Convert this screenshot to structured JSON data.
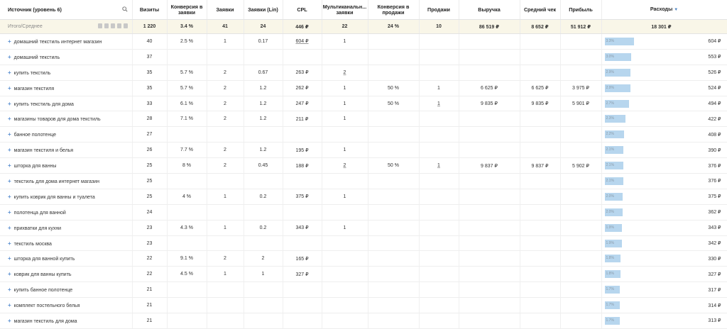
{
  "headers": {
    "source": "Источник (уровень 6)",
    "visits": "Визиты",
    "conv_req": "Конверсия в заявки",
    "requests": "Заявки",
    "requests_lin": "Заявки (Lin)",
    "cpl": "CPL",
    "multichannel": "Мультиканальн... заявки",
    "conv_sales": "Конверсия в продажи",
    "sales": "Продажи",
    "revenue": "Выручка",
    "avg_check": "Средний чек",
    "profit": "Прибыль",
    "spend": "Расходы",
    "sort_arrow": "▼"
  },
  "total": {
    "label": "Итого/Среднее",
    "visits": "1 220",
    "conv_req": "3.4 %",
    "requests": "41",
    "requests_lin": "24",
    "cpl": "446 ₽",
    "multichannel": "22",
    "conv_sales": "24 %",
    "sales": "10",
    "revenue": "86 519 ₽",
    "avg_check": "8 652 ₽",
    "profit": "51 912 ₽",
    "spend": "18 301 ₽"
  },
  "rows": [
    {
      "name": "домашний текстиль интернет магазин",
      "visits": "40",
      "conv_req": "2.5 %",
      "requests": "1",
      "requests_lin": "0.17",
      "cpl": "604 ₽",
      "multichannel": "1",
      "conv_sales": "",
      "sales": "",
      "revenue": "",
      "avg_check": "",
      "profit": "",
      "spend": "604 ₽",
      "spend_pct": "3.3%",
      "spend_share": 0.033
    },
    {
      "name": "домашний текстиль",
      "visits": "37",
      "conv_req": "",
      "requests": "",
      "requests_lin": "",
      "cpl": "",
      "multichannel": "",
      "conv_sales": "",
      "sales": "",
      "revenue": "",
      "avg_check": "",
      "profit": "",
      "spend": "553 ₽",
      "spend_pct": "3.0%",
      "spend_share": 0.03
    },
    {
      "name": "купить текстиль",
      "visits": "35",
      "conv_req": "5.7 %",
      "requests": "2",
      "requests_lin": "0.67",
      "cpl": "263 ₽",
      "multichannel": "2",
      "conv_sales": "",
      "sales": "",
      "revenue": "",
      "avg_check": "",
      "profit": "",
      "spend": "526 ₽",
      "spend_pct": "2.9%",
      "spend_share": 0.029
    },
    {
      "name": "магазин текстиля",
      "visits": "35",
      "conv_req": "5.7 %",
      "requests": "2",
      "requests_lin": "1.2",
      "cpl": "262 ₽",
      "multichannel": "1",
      "conv_sales": "50 %",
      "sales": "1",
      "revenue": "6 625 ₽",
      "avg_check": "6 625 ₽",
      "profit": "3 975 ₽",
      "spend": "524 ₽",
      "spend_pct": "2.9%",
      "spend_share": 0.029
    },
    {
      "name": "купить текстиль для дома",
      "visits": "33",
      "conv_req": "6.1 %",
      "requests": "2",
      "requests_lin": "1.2",
      "cpl": "247 ₽",
      "multichannel": "1",
      "conv_sales": "50 %",
      "sales": "1",
      "revenue": "9 835 ₽",
      "avg_check": "9 835 ₽",
      "profit": "5 901 ₽",
      "spend": "494 ₽",
      "spend_pct": "2.7%",
      "spend_share": 0.027
    },
    {
      "name": "магазины товаров для дома текстиль",
      "visits": "28",
      "conv_req": "7.1 %",
      "requests": "2",
      "requests_lin": "1.2",
      "cpl": "211 ₽",
      "multichannel": "1",
      "conv_sales": "",
      "sales": "",
      "revenue": "",
      "avg_check": "",
      "profit": "",
      "spend": "422 ₽",
      "spend_pct": "2.3%",
      "spend_share": 0.023
    },
    {
      "name": "банное полотенце",
      "visits": "27",
      "conv_req": "",
      "requests": "",
      "requests_lin": "",
      "cpl": "",
      "multichannel": "",
      "conv_sales": "",
      "sales": "",
      "revenue": "",
      "avg_check": "",
      "profit": "",
      "spend": "408 ₽",
      "spend_pct": "2.2%",
      "spend_share": 0.022
    },
    {
      "name": "магазин текстиля и белья",
      "visits": "26",
      "conv_req": "7.7 %",
      "requests": "2",
      "requests_lin": "1.2",
      "cpl": "195 ₽",
      "multichannel": "1",
      "conv_sales": "",
      "sales": "",
      "revenue": "",
      "avg_check": "",
      "profit": "",
      "spend": "390 ₽",
      "spend_pct": "2.1%",
      "spend_share": 0.021
    },
    {
      "name": "шторка для ванны",
      "visits": "25",
      "conv_req": "8 %",
      "requests": "2",
      "requests_lin": "0.45",
      "cpl": "188 ₽",
      "multichannel": "2",
      "conv_sales": "50 %",
      "sales": "1",
      "revenue": "9 837 ₽",
      "avg_check": "9 837 ₽",
      "profit": "5 902 ₽",
      "spend": "376 ₽",
      "spend_pct": "2.1%",
      "spend_share": 0.021
    },
    {
      "name": "текстиль для дома интернет магазин",
      "visits": "25",
      "conv_req": "",
      "requests": "",
      "requests_lin": "",
      "cpl": "",
      "multichannel": "",
      "conv_sales": "",
      "sales": "",
      "revenue": "",
      "avg_check": "",
      "profit": "",
      "spend": "376 ₽",
      "spend_pct": "2.1%",
      "spend_share": 0.021
    },
    {
      "name": "купить коврик для ванны и туалета",
      "visits": "25",
      "conv_req": "4 %",
      "requests": "1",
      "requests_lin": "0.2",
      "cpl": "375 ₽",
      "multichannel": "1",
      "conv_sales": "",
      "sales": "",
      "revenue": "",
      "avg_check": "",
      "profit": "",
      "spend": "375 ₽",
      "spend_pct": "2.0%",
      "spend_share": 0.02
    },
    {
      "name": "полотенца для ванной",
      "visits": "24",
      "conv_req": "",
      "requests": "",
      "requests_lin": "",
      "cpl": "",
      "multichannel": "",
      "conv_sales": "",
      "sales": "",
      "revenue": "",
      "avg_check": "",
      "profit": "",
      "spend": "362 ₽",
      "spend_pct": "2.0%",
      "spend_share": 0.02
    },
    {
      "name": "прихватки для кухни",
      "visits": "23",
      "conv_req": "4.3 %",
      "requests": "1",
      "requests_lin": "0.2",
      "cpl": "343 ₽",
      "multichannel": "1",
      "conv_sales": "",
      "sales": "",
      "revenue": "",
      "avg_check": "",
      "profit": "",
      "spend": "343 ₽",
      "spend_pct": "1.9%",
      "spend_share": 0.019
    },
    {
      "name": "текстиль москва",
      "visits": "23",
      "conv_req": "",
      "requests": "",
      "requests_lin": "",
      "cpl": "",
      "multichannel": "",
      "conv_sales": "",
      "sales": "",
      "revenue": "",
      "avg_check": "",
      "profit": "",
      "spend": "342 ₽",
      "spend_pct": "1.9%",
      "spend_share": 0.019
    },
    {
      "name": "шторка для ванной купить",
      "visits": "22",
      "conv_req": "9.1 %",
      "requests": "2",
      "requests_lin": "2",
      "cpl": "165 ₽",
      "multichannel": "",
      "conv_sales": "",
      "sales": "",
      "revenue": "",
      "avg_check": "",
      "profit": "",
      "spend": "330 ₽",
      "spend_pct": "1.8%",
      "spend_share": 0.018
    },
    {
      "name": "коврик для ванны купить",
      "visits": "22",
      "conv_req": "4.5 %",
      "requests": "1",
      "requests_lin": "1",
      "cpl": "327 ₽",
      "multichannel": "",
      "conv_sales": "",
      "sales": "",
      "revenue": "",
      "avg_check": "",
      "profit": "",
      "spend": "327 ₽",
      "spend_pct": "1.8%",
      "spend_share": 0.018
    },
    {
      "name": "купить банное полотенце",
      "visits": "21",
      "conv_req": "",
      "requests": "",
      "requests_lin": "",
      "cpl": "",
      "multichannel": "",
      "conv_sales": "",
      "sales": "",
      "revenue": "",
      "avg_check": "",
      "profit": "",
      "spend": "317 ₽",
      "spend_pct": "1.7%",
      "spend_share": 0.017
    },
    {
      "name": "комплект постельного белья",
      "visits": "21",
      "conv_req": "",
      "requests": "",
      "requests_lin": "",
      "cpl": "",
      "multichannel": "",
      "conv_sales": "",
      "sales": "",
      "revenue": "",
      "avg_check": "",
      "profit": "",
      "spend": "314 ₽",
      "spend_pct": "1.7%",
      "spend_share": 0.017
    },
    {
      "name": "магазин текстиль для дома",
      "visits": "21",
      "conv_req": "",
      "requests": "",
      "requests_lin": "",
      "cpl": "",
      "multichannel": "",
      "conv_sales": "",
      "sales": "",
      "revenue": "",
      "avg_check": "",
      "profit": "",
      "spend": "313 ₽",
      "spend_pct": "1.7%",
      "spend_share": 0.017
    }
  ],
  "icons": {
    "search": "search-icon",
    "plus": "expand-plus-icon"
  },
  "colors": {
    "accent": "#5a8fd0",
    "bar": "#b7d6ee",
    "total_bg": "#f9f6e8"
  }
}
